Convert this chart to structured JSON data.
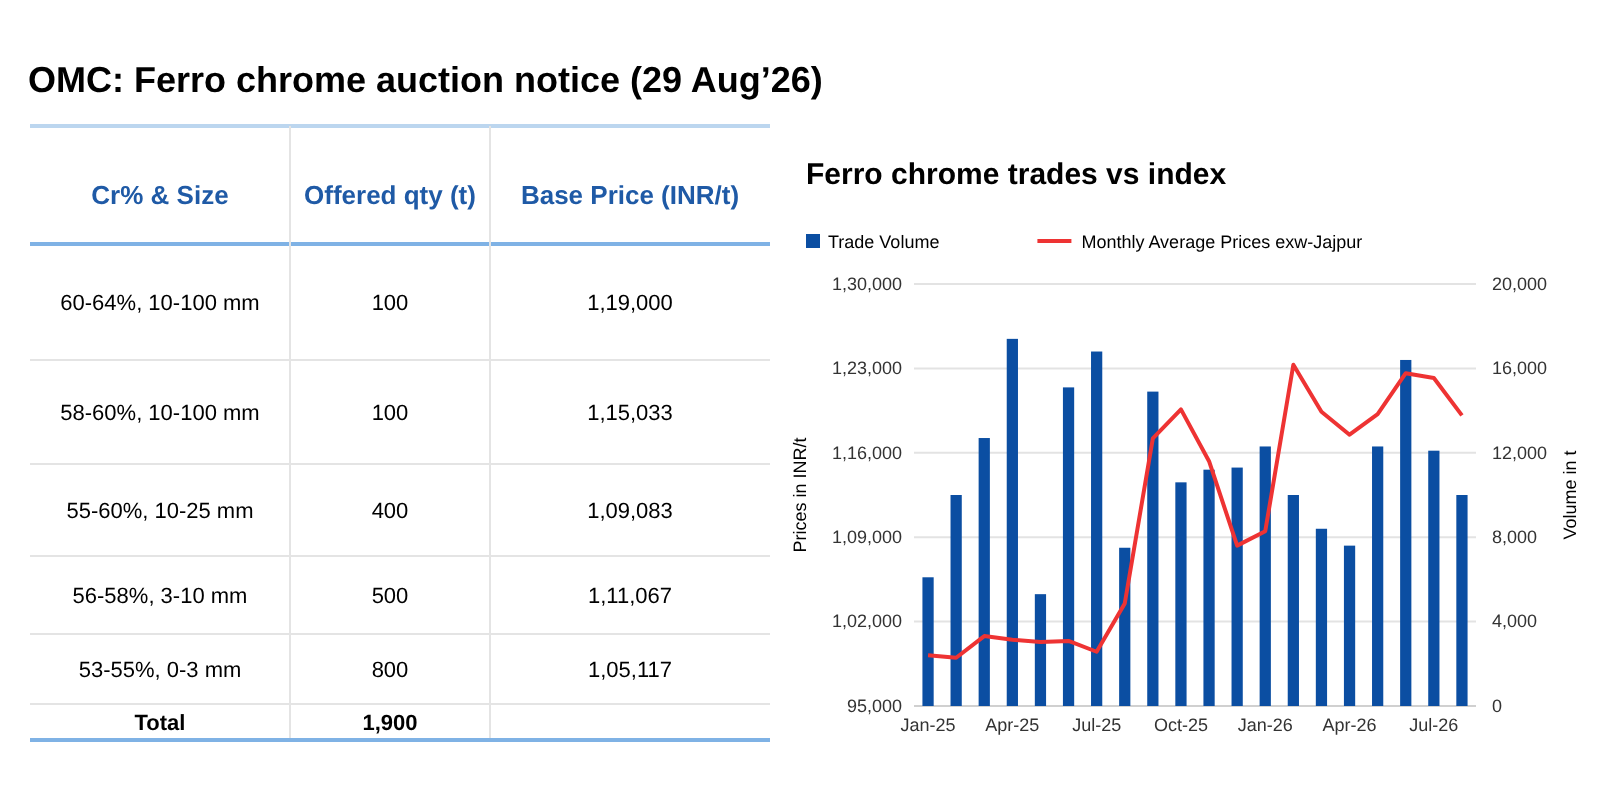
{
  "chart_data": [
    {
      "type": "other",
      "title": "OMC: Ferro chrome auction notice (29 Aug’26)",
      "xlabel": "Cr% & Size",
      "categories": [
        "60-64%, 10-100 mm",
        "58-60%, 10-100 mm",
        "55-60%, 10-25 mm",
        "56-58%, 3-10 mm",
        "53-55%, 0-3 mm",
        "Total"
      ],
      "series": [
        {
          "name": "Offered qty (t)",
          "values": [
            100,
            100,
            400,
            500,
            800,
            1900
          ],
          "value_labels": [
            "100",
            "100",
            "400",
            "500",
            "800",
            "1,900"
          ]
        },
        {
          "name": "Base Price (INR/t)",
          "values": [
            119000,
            115033,
            109083,
            111067,
            105117,
            null
          ],
          "value_labels": [
            "1,19,000",
            "1,15,033",
            "1,09,083",
            "1,11,067",
            "1,05,117",
            null
          ]
        }
      ]
    },
    {
      "type": "bar",
      "title": "Ferro chrome trades vs index",
      "ylabel": "Prices in INR/t",
      "y2label": "Volume in t",
      "categories": [
        "Jan-25",
        null,
        null,
        "Apr-25",
        null,
        null,
        "Jul-25",
        null,
        null,
        "Oct-25",
        null,
        null,
        "Jan-26",
        null,
        null,
        "Apr-26",
        null,
        null,
        "Jul-26",
        null
      ],
      "series": [
        {
          "name": "Trade Volume",
          "type": "bar",
          "axis": "y2",
          "color": "#0b4ea2",
          "values": [
            6100,
            10000,
            12700,
            17400,
            5300,
            15100,
            16800,
            7500,
            14900,
            10600,
            11200,
            11300,
            12300,
            10000,
            8400,
            7600,
            12300,
            16400,
            12100,
            10000
          ]
        },
        {
          "name": "Monthly Average Prices exw-Jajpur",
          "type": "line",
          "color": "#ee3333",
          "values": [
            99200,
            99000,
            100800,
            100500,
            100300,
            100400,
            99500,
            103500,
            117200,
            119600,
            115300,
            108300,
            109500,
            123300,
            119400,
            117500,
            119200,
            122600,
            122200,
            119100
          ]
        }
      ],
      "ylim": [
        95000,
        130000
      ],
      "yticks": [
        {
          "value": 95000,
          "label": "95,000"
        },
        {
          "value": 102000,
          "label": "1,02,000"
        },
        {
          "value": 109000,
          "label": "1,09,000"
        },
        {
          "value": 116000,
          "label": "1,16,000"
        },
        {
          "value": 123000,
          "label": "1,23,000"
        },
        {
          "value": 130000,
          "label": "1,30,000"
        }
      ],
      "y2lim": [
        0,
        20000
      ],
      "y2ticks": [
        0,
        {
          "value": 4000,
          "label": "4,000"
        },
        {
          "value": 8000,
          "label": "8,000"
        },
        {
          "value": 12000,
          "label": "12,000"
        },
        {
          "value": 16000,
          "label": "16,000"
        },
        {
          "value": 20000,
          "label": "20,000"
        }
      ],
      "grid": "y",
      "legend": "top",
      "marker": "none",
      "line_style": "solid"
    }
  ]
}
